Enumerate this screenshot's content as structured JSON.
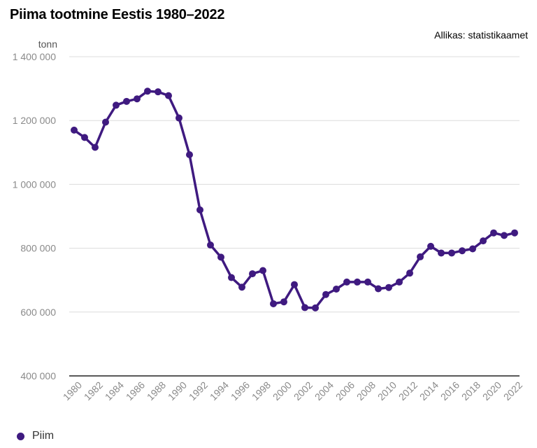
{
  "title": "Piima tootmine Eestis 1980–2022",
  "source": "Allikas: statistikaamet",
  "colors": {
    "series": "#3f1a80",
    "grid": "#dcdcdc",
    "axis": "#222222",
    "tick_text": "#8a8a8a"
  },
  "chart_data": {
    "type": "line",
    "title": "Piima tootmine Eestis 1980–2022",
    "xlabel": "",
    "ylabel": "tonn",
    "ylim": [
      400000,
      1400000
    ],
    "yticks": [
      400000,
      600000,
      800000,
      1000000,
      1200000,
      1400000
    ],
    "ytick_labels": [
      "400 000",
      "600 000",
      "800 000",
      "1 000 000",
      "1 200 000",
      "1 400 000"
    ],
    "xticks": [
      "1980",
      "1982",
      "1984",
      "1986",
      "1988",
      "1990",
      "1992",
      "1994",
      "1996",
      "1998",
      "2000",
      "2002",
      "2004",
      "2006",
      "2008",
      "2010",
      "2012",
      "2014",
      "2016",
      "2018",
      "2020",
      "2022"
    ],
    "grid": true,
    "legend_position": "bottom-left",
    "x": [
      1980,
      1981,
      1982,
      1983,
      1984,
      1985,
      1986,
      1987,
      1988,
      1989,
      1990,
      1991,
      1992,
      1993,
      1994,
      1995,
      1996,
      1997,
      1998,
      1999,
      2000,
      2001,
      2002,
      2003,
      2004,
      2005,
      2006,
      2007,
      2008,
      2009,
      2010,
      2011,
      2012,
      2013,
      2014,
      2015,
      2016,
      2017,
      2018,
      2019,
      2020,
      2021,
      2022
    ],
    "series": [
      {
        "name": "Piim",
        "values": [
          1170000,
          1147000,
          1116000,
          1195000,
          1248000,
          1260000,
          1268000,
          1292000,
          1290000,
          1278000,
          1208000,
          1093000,
          920000,
          810000,
          772000,
          708000,
          678000,
          720000,
          730000,
          626000,
          632000,
          686000,
          614000,
          613000,
          655000,
          672000,
          694000,
          694000,
          694000,
          673000,
          677000,
          694000,
          722000,
          773000,
          806000,
          785000,
          785000,
          792000,
          798000,
          823000,
          848000,
          840000,
          848000
        ]
      }
    ]
  }
}
